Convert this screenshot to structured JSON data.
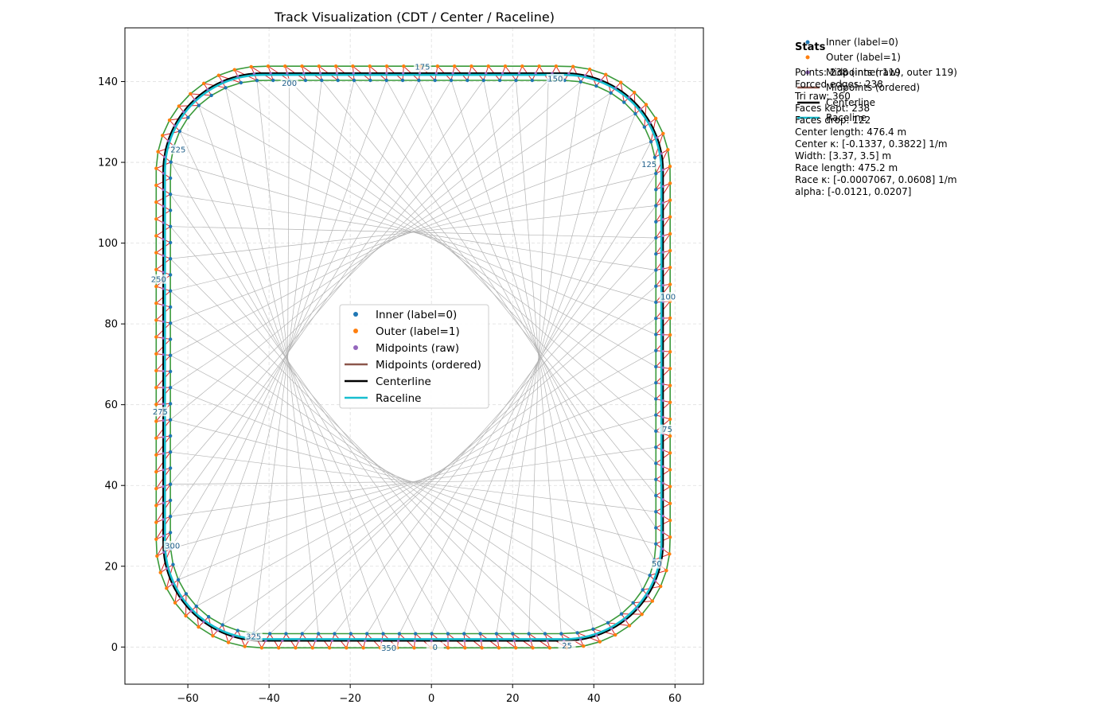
{
  "chart_data": {
    "type": "scatter",
    "title": "Track Visualization (CDT / Center / Raceline)",
    "xlabel": "",
    "ylabel": "",
    "xlim": [
      -75.5,
      67
    ],
    "ylim": [
      -9.2,
      153.3
    ],
    "xticks": [
      -60,
      -40,
      -20,
      0,
      20,
      40,
      60
    ],
    "yticks": [
      0,
      20,
      40,
      60,
      80,
      100,
      120,
      140
    ],
    "grid": true,
    "legend_position": "center",
    "shape": {
      "x_min": -67.8,
      "x_max": 58.8,
      "y_min": -0.2,
      "y_max": 143.8,
      "corner_radius": 26,
      "track_width": 3.5,
      "raceline_offset": 0.4
    },
    "inner_count": 119,
    "outer_count": 119,
    "index_labels": [
      {
        "label": "0",
        "x": 0.9,
        "y": 0.0
      },
      {
        "label": "25",
        "x": 33.4,
        "y": 0.4
      },
      {
        "label": "50",
        "x": 55.5,
        "y": 20.6
      },
      {
        "label": "75",
        "x": 58.1,
        "y": 53.9
      },
      {
        "label": "100",
        "x": 58.3,
        "y": 86.7
      },
      {
        "label": "125",
        "x": 53.6,
        "y": 119.5
      },
      {
        "label": "150",
        "x": 30.5,
        "y": 140.7
      },
      {
        "label": "175",
        "x": -2.2,
        "y": 143.6
      },
      {
        "label": "200",
        "x": -35.0,
        "y": 139.6
      },
      {
        "label": "225",
        "x": -62.4,
        "y": 123.2
      },
      {
        "label": "250",
        "x": -67.2,
        "y": 91.1
      },
      {
        "label": "275",
        "x": -66.8,
        "y": 58.3
      },
      {
        "label": "300",
        "x": -63.8,
        "y": 25.1
      },
      {
        "label": "325",
        "x": -43.8,
        "y": 2.6
      },
      {
        "label": "350",
        "x": -10.5,
        "y": -0.2
      }
    ],
    "series": [
      {
        "name": "Inner (label=0)",
        "kind": "point",
        "color": "#1f77b4"
      },
      {
        "name": "Outer (label=1)",
        "kind": "point",
        "color": "#ff7f0e"
      },
      {
        "name": "Midpoints (raw)",
        "kind": "point",
        "color": "#9467bd"
      },
      {
        "name": "Midpoints (ordered)",
        "kind": "line",
        "color": "#8c564b"
      },
      {
        "name": "Centerline",
        "kind": "line",
        "color": "#000000"
      },
      {
        "name": "Raceline",
        "kind": "line",
        "color": "#17becf"
      }
    ],
    "colors": {
      "boundary": "#3a9a3a",
      "triangle_edge": "#d62728",
      "cdt_edge": "#b4b4b4",
      "grid": "#dddddd"
    }
  },
  "stats": {
    "title": "Stats",
    "lines": [
      "Points: 238 (inner 119, outer 119)",
      "Forced edges: 238",
      "Tri raw: 360",
      "Faces kept: 238",
      "Faces drop: 122",
      "Center length: 476.4 m",
      "Center κ: [-0.1337, 0.3822] 1/m",
      "Width: [3.37, 3.5] m",
      "Race length: 475.2 m",
      "Race κ: [-0.0007067, 0.0608] 1/m",
      "alpha: [-0.0121, 0.0207]"
    ]
  }
}
